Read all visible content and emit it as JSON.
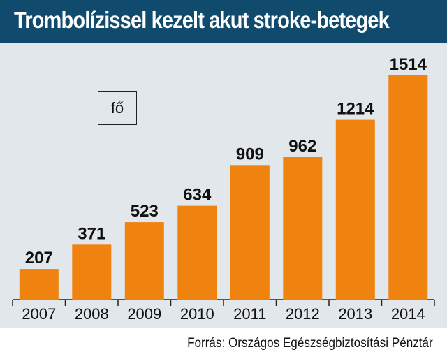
{
  "title": "Trombolízissel kezelt akut stroke-betegek",
  "unit": "fő",
  "source": "Forrás: Országos Egészségbiztosítási Pénztár",
  "colors": {
    "title_bg": "#104a6d",
    "bar": "#f0820f",
    "plot_bg": "#e2e7eb"
  },
  "chart_data": {
    "type": "bar",
    "title": "Trombolízissel kezelt akut stroke-betegek",
    "ylabel": "fő",
    "xlabel": "",
    "categories": [
      "2007",
      "2008",
      "2009",
      "2010",
      "2011",
      "2012",
      "2013",
      "2014"
    ],
    "values": [
      207,
      371,
      523,
      634,
      909,
      962,
      1214,
      1514
    ],
    "ylim": [
      0,
      1600
    ],
    "grid": false,
    "legend": "none"
  }
}
